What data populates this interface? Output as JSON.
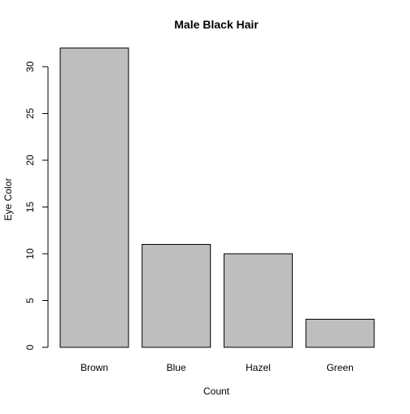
{
  "chart_data": {
    "type": "bar",
    "title": "Male Black Hair",
    "xlabel": "Count",
    "ylabel": "Eye Color",
    "categories": [
      "Brown",
      "Blue",
      "Hazel",
      "Green"
    ],
    "values": [
      32,
      11,
      10,
      3
    ],
    "ylim": [
      0,
      32
    ],
    "yticks": [
      0,
      5,
      10,
      15,
      20,
      25,
      30
    ],
    "grid": false,
    "legend": "none",
    "colors": {
      "bar_fill": "#bebebe",
      "bar_stroke": "#000000",
      "axis": "#000000",
      "background": "#ffffff"
    }
  }
}
